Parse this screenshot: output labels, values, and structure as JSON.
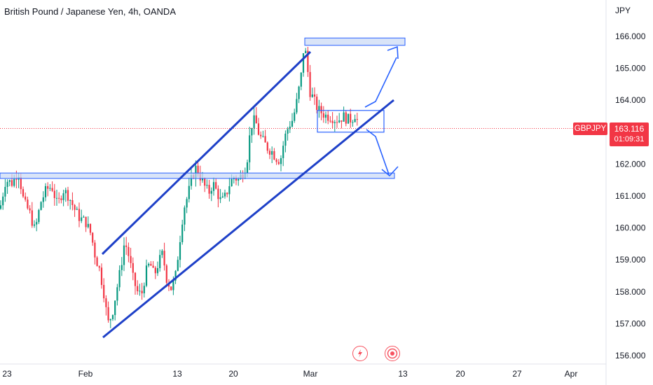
{
  "header": {
    "title": "British Pound / Japanese Yen, 4h, OANDA",
    "currency": "JPY"
  },
  "price_badge": {
    "symbol": "GBPJPY",
    "price": "163.116",
    "countdown": "01:09:31",
    "color": "#f23645"
  },
  "colors": {
    "up": "#089981",
    "down": "#f23645",
    "channel": "#1e40c8",
    "zone_fill": "#c9d8f5",
    "zone_stroke": "#2962ff",
    "arrow": "#2962ff"
  },
  "icons": [
    "lightning-icon",
    "target-icon"
  ],
  "chart_data": {
    "type": "candlestick",
    "title": "British Pound / Japanese Yen, 4h, OANDA",
    "y_unit": "JPY",
    "ylim": [
      155.8,
      166.6
    ],
    "yticks": [
      "156.000",
      "157.000",
      "158.000",
      "159.000",
      "160.000",
      "161.000",
      "162.000",
      "163.000",
      "164.000",
      "165.000",
      "166.000"
    ],
    "x_tick_labels": [
      "23",
      "Feb",
      "13",
      "20",
      "Mar",
      "13",
      "20",
      "27",
      "Apr"
    ],
    "last_price": 163.116,
    "series_path": [
      [
        0,
        160.6
      ],
      [
        8,
        161.5
      ],
      [
        18,
        161.4
      ],
      [
        26,
        161.8
      ],
      [
        34,
        160.8
      ],
      [
        42,
        160.5
      ],
      [
        50,
        159.9
      ],
      [
        58,
        160.8
      ],
      [
        66,
        161.2
      ],
      [
        74,
        161.3
      ],
      [
        82,
        160.7
      ],
      [
        90,
        161.2
      ],
      [
        98,
        161.0
      ],
      [
        106,
        160.6
      ],
      [
        114,
        160.3
      ],
      [
        122,
        160.2
      ],
      [
        130,
        159.8
      ],
      [
        136,
        159.1
      ],
      [
        142,
        158.7
      ],
      [
        148,
        158.0
      ],
      [
        154,
        157.0
      ],
      [
        160,
        157.3
      ],
      [
        166,
        158.0
      ],
      [
        172,
        158.7
      ],
      [
        178,
        159.6
      ],
      [
        184,
        159.1
      ],
      [
        190,
        158.4
      ],
      [
        196,
        158.0
      ],
      [
        202,
        157.9
      ],
      [
        208,
        158.6
      ],
      [
        214,
        158.9
      ],
      [
        220,
        158.5
      ],
      [
        226,
        158.9
      ],
      [
        232,
        159.2
      ],
      [
        238,
        158.4
      ],
      [
        244,
        158.1
      ],
      [
        250,
        158.4
      ],
      [
        256,
        159.5
      ],
      [
        262,
        160.6
      ],
      [
        268,
        161.0
      ],
      [
        274,
        161.6
      ],
      [
        280,
        161.9
      ],
      [
        286,
        161.6
      ],
      [
        292,
        161.3
      ],
      [
        298,
        161.1
      ],
      [
        304,
        161.4
      ],
      [
        310,
        161.1
      ],
      [
        316,
        160.8
      ],
      [
        322,
        161.0
      ],
      [
        328,
        161.4
      ],
      [
        334,
        161.6
      ],
      [
        340,
        161.5
      ],
      [
        346,
        161.7
      ],
      [
        352,
        162.0
      ],
      [
        358,
        163.2
      ],
      [
        364,
        163.4
      ],
      [
        370,
        162.9
      ],
      [
        376,
        162.7
      ],
      [
        382,
        162.5
      ],
      [
        388,
        162.4
      ],
      [
        394,
        162.2
      ],
      [
        400,
        162.1
      ],
      [
        406,
        162.8
      ],
      [
        412,
        163.2
      ],
      [
        418,
        163.4
      ],
      [
        424,
        164.0
      ],
      [
        430,
        164.8
      ],
      [
        434,
        165.8
      ],
      [
        438,
        165.2
      ],
      [
        442,
        164.3
      ],
      [
        448,
        164.0
      ],
      [
        454,
        163.7
      ],
      [
        460,
        163.6
      ],
      [
        466,
        163.5
      ],
      [
        472,
        163.5
      ],
      [
        478,
        163.4
      ],
      [
        484,
        163.4
      ],
      [
        490,
        163.5
      ],
      [
        496,
        163.4
      ],
      [
        502,
        163.4
      ],
      [
        508,
        163.6
      ],
      [
        512,
        163.1
      ]
    ],
    "annotations": {
      "resistance_zone": [
        165.72,
        165.95
      ],
      "support_zone": [
        161.55,
        161.72
      ],
      "consolidation_top": 163.68,
      "consolidation_bottom": 163.0
    }
  }
}
